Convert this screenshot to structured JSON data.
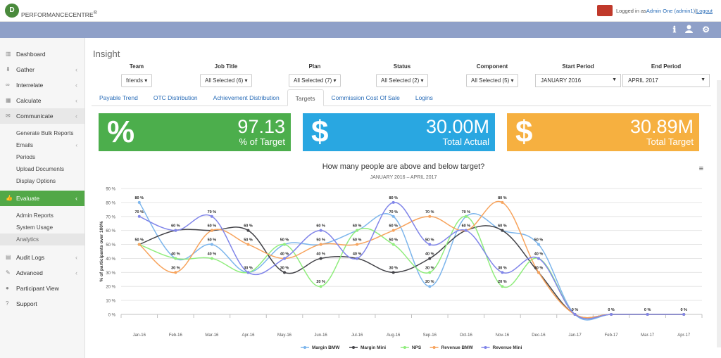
{
  "brand": {
    "logo_mark": "D",
    "name": "PERFORMANCECENTRE",
    "reg": "®"
  },
  "user": {
    "prefix": "Logged in as ",
    "name": "Admin One (admin1)",
    "sep": " | ",
    "logout": "Logout"
  },
  "nav_icons": {
    "info": "ℹ",
    "user": "👤",
    "settings": "⚙"
  },
  "sidebar": {
    "items": [
      {
        "label": "Dashboard",
        "icon": "chart-icon"
      },
      {
        "label": "Gather",
        "icon": "download-icon",
        "chev": "‹"
      },
      {
        "label": "Interrelate",
        "icon": "link-icon",
        "chev": "‹"
      },
      {
        "label": "Calculate",
        "icon": "calculator-icon",
        "chev": "‹"
      },
      {
        "label": "Communicate",
        "icon": "chat-icon",
        "chev": "‹"
      }
    ],
    "communicate_sub": [
      "Generate Bulk Reports",
      "Emails",
      "Periods",
      "Upload Documents",
      "Display Options"
    ],
    "emails_chev": "‹",
    "evaluate": {
      "label": "Evaluate",
      "chev": "‹"
    },
    "evaluate_sub": [
      "Admin Reports",
      "System Usage",
      "Analytics"
    ],
    "bottom": [
      {
        "label": "Audit Logs",
        "chev": "‹"
      },
      {
        "label": "Advanced",
        "chev": "‹"
      },
      {
        "label": "Participant View"
      },
      {
        "label": "Support"
      }
    ]
  },
  "page_title": "Insight",
  "filters": {
    "team": {
      "label": "Team",
      "value": "friends ▾"
    },
    "job": {
      "label": "Job Title",
      "value": "All Selected (6) ▾"
    },
    "plan": {
      "label": "Plan",
      "value": "All Selected (7) ▾"
    },
    "status": {
      "label": "Status",
      "value": "All Selected (2) ▾"
    },
    "component": {
      "label": "Component",
      "value": "All Selected (5) ▾"
    },
    "start": {
      "label": "Start Period",
      "value": "JANUARY 2016"
    },
    "end": {
      "label": "End Period",
      "value": "APRIL 2017"
    }
  },
  "tabs": [
    "Payable Trend",
    "OTC Distribution",
    "Achievement Distribution",
    "Targets",
    "Commission Cost Of Sale",
    "Logins"
  ],
  "kpis": [
    {
      "icon": "%",
      "value": "97.13",
      "label": "% of Target",
      "color": "#4cae4c"
    },
    {
      "icon": "$",
      "value": "30.00M",
      "label": "Total Actual",
      "color": "#29a7e1"
    },
    {
      "icon": "$",
      "value": "30.89M",
      "label": "Total Target",
      "color": "#f6b040"
    }
  ],
  "chart_data": {
    "type": "line",
    "title": "How many people are above and below target?",
    "subtitle": "JANUARY 2016 – APRIL 2017",
    "ylabel": "% of participants over 100%",
    "ylim": [
      0,
      90
    ],
    "yticks": [
      0,
      10,
      20,
      30,
      40,
      50,
      60,
      70,
      80,
      90
    ],
    "categories": [
      "Jan-16",
      "Feb-16",
      "Mar-16",
      "Apr-16",
      "May-16",
      "Jun-16",
      "Jul-16",
      "Aug-16",
      "Sep-16",
      "Oct-16",
      "Nov-16",
      "Dec-16",
      "Jan-17",
      "Feb-17",
      "Mar-17",
      "Apr-17"
    ],
    "series": [
      {
        "name": "Margin BMW",
        "color": "#7cb5ec",
        "values": [
          80,
          40,
          50,
          30,
          50,
          50,
          60,
          70,
          20,
          70,
          60,
          50,
          0,
          0,
          0,
          0
        ]
      },
      {
        "name": "Margin Mini",
        "color": "#434348",
        "values": [
          50,
          60,
          60,
          60,
          30,
          40,
          40,
          30,
          40,
          60,
          60,
          30,
          0,
          0,
          0,
          0
        ]
      },
      {
        "name": "NPS",
        "color": "#90ed7d",
        "values": [
          50,
          40,
          40,
          30,
          50,
          20,
          60,
          50,
          30,
          70,
          20,
          40,
          0,
          0,
          0,
          0
        ]
      },
      {
        "name": "Revenue BMW",
        "color": "#f7a35c",
        "values": [
          50,
          30,
          60,
          50,
          40,
          50,
          50,
          60,
          70,
          60,
          80,
          30,
          0,
          0,
          0,
          0
        ]
      },
      {
        "name": "Revenue Mini",
        "color": "#8085e9",
        "values": [
          70,
          60,
          70,
          30,
          40,
          60,
          40,
          80,
          50,
          60,
          30,
          40,
          0,
          0,
          0,
          0
        ]
      }
    ],
    "label_format": "{v} %",
    "y_tick_format": "{v} %"
  },
  "chart_menu": "≡"
}
